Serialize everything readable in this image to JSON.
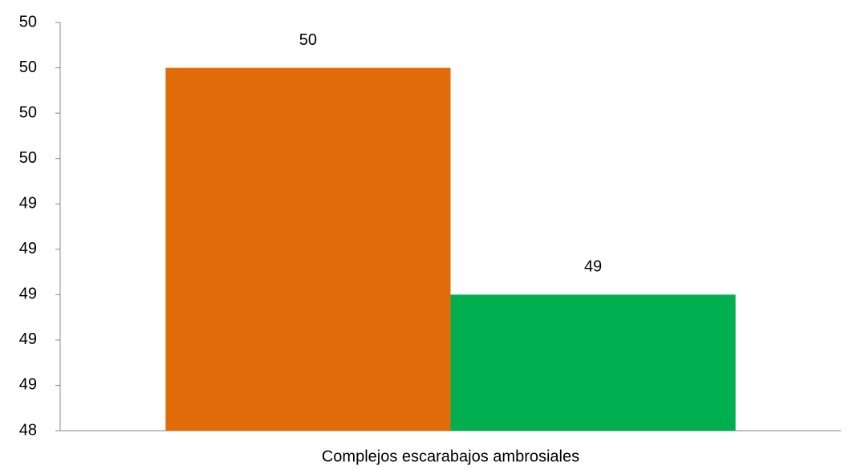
{
  "chart_data": {
    "type": "bar",
    "categories": [
      "Complejos escarabajos ambrosiales"
    ],
    "series": [
      {
        "color": "#e36c0a",
        "values": [
          50
        ],
        "value_labels": [
          "50"
        ]
      },
      {
        "color": "#00b050",
        "values": [
          49
        ],
        "value_labels": [
          "49"
        ]
      }
    ],
    "ylim": [
      48.4,
      50.2
    ],
    "yticks": [
      {
        "value": 48.4,
        "label": "48"
      },
      {
        "value": 48.6,
        "label": "49"
      },
      {
        "value": 48.8,
        "label": "49"
      },
      {
        "value": 49.0,
        "label": "49"
      },
      {
        "value": 49.2,
        "label": "49"
      },
      {
        "value": 49.4,
        "label": "49"
      },
      {
        "value": 49.6,
        "label": "50"
      },
      {
        "value": 49.8,
        "label": "50"
      },
      {
        "value": 50.0,
        "label": "50"
      },
      {
        "value": 50.2,
        "label": "50"
      }
    ],
    "grid": false
  }
}
